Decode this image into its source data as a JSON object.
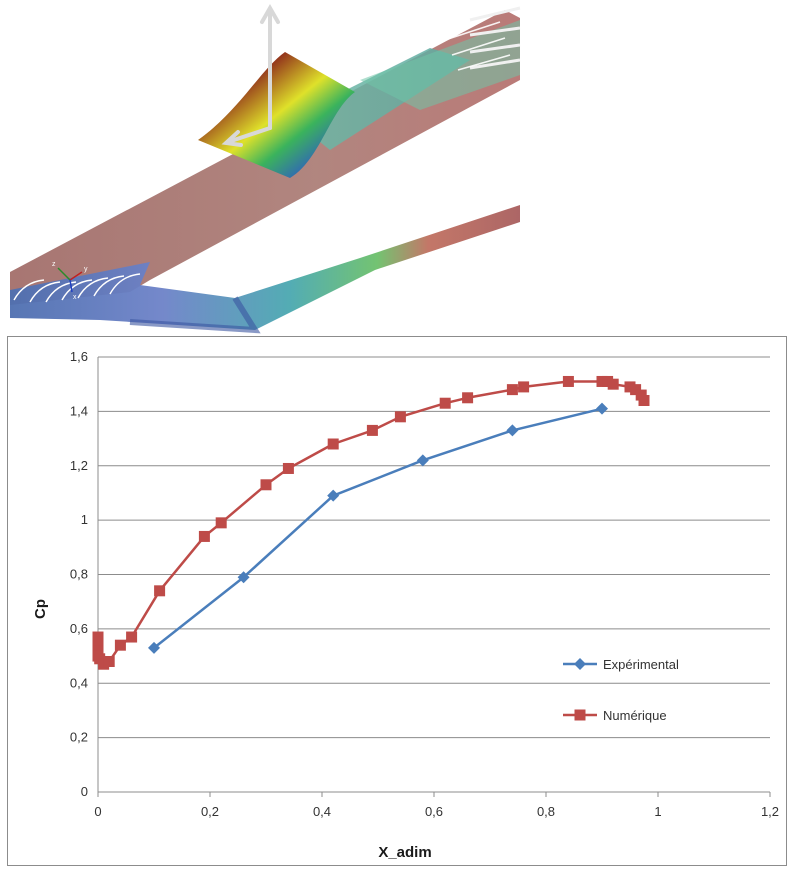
{
  "render": {
    "axis_labels": [
      "z",
      "y",
      "x"
    ]
  },
  "chart_data": {
    "type": "line",
    "title": "",
    "xlabel": "X_adim",
    "ylabel": "Cp",
    "xlim": [
      0,
      1.2
    ],
    "ylim": [
      0,
      1.6
    ],
    "x_ticks": [
      "0",
      "0,2",
      "0,4",
      "0,6",
      "0,8",
      "1",
      "1,2"
    ],
    "y_ticks": [
      "0",
      "0,2",
      "0,4",
      "0,6",
      "0,8",
      "1",
      "1,2",
      "1,4",
      "1,6"
    ],
    "grid": "horizontal",
    "legend_position": "right",
    "series": [
      {
        "name": "Expérimental",
        "color": "#4a7ebb",
        "marker": "diamond",
        "x": [
          0.1,
          0.26,
          0.42,
          0.58,
          0.74,
          0.9
        ],
        "y": [
          0.53,
          0.79,
          1.09,
          1.22,
          1.33,
          1.41
        ]
      },
      {
        "name": "Numérique",
        "color": "#be4b48",
        "marker": "square",
        "x": [
          0.0,
          0.0,
          0.0,
          0.0,
          0.003,
          0.01,
          0.02,
          0.04,
          0.06,
          0.11,
          0.19,
          0.22,
          0.3,
          0.34,
          0.42,
          0.49,
          0.54,
          0.62,
          0.66,
          0.74,
          0.76,
          0.84,
          0.9,
          0.91,
          0.92,
          0.95,
          0.96,
          0.97,
          0.975
        ],
        "y": [
          0.57,
          0.54,
          0.52,
          0.5,
          0.49,
          0.47,
          0.48,
          0.54,
          0.57,
          0.74,
          0.94,
          0.99,
          1.13,
          1.19,
          1.28,
          1.33,
          1.38,
          1.43,
          1.45,
          1.48,
          1.49,
          1.51,
          1.51,
          1.51,
          1.5,
          1.49,
          1.48,
          1.46,
          1.44
        ]
      }
    ]
  }
}
